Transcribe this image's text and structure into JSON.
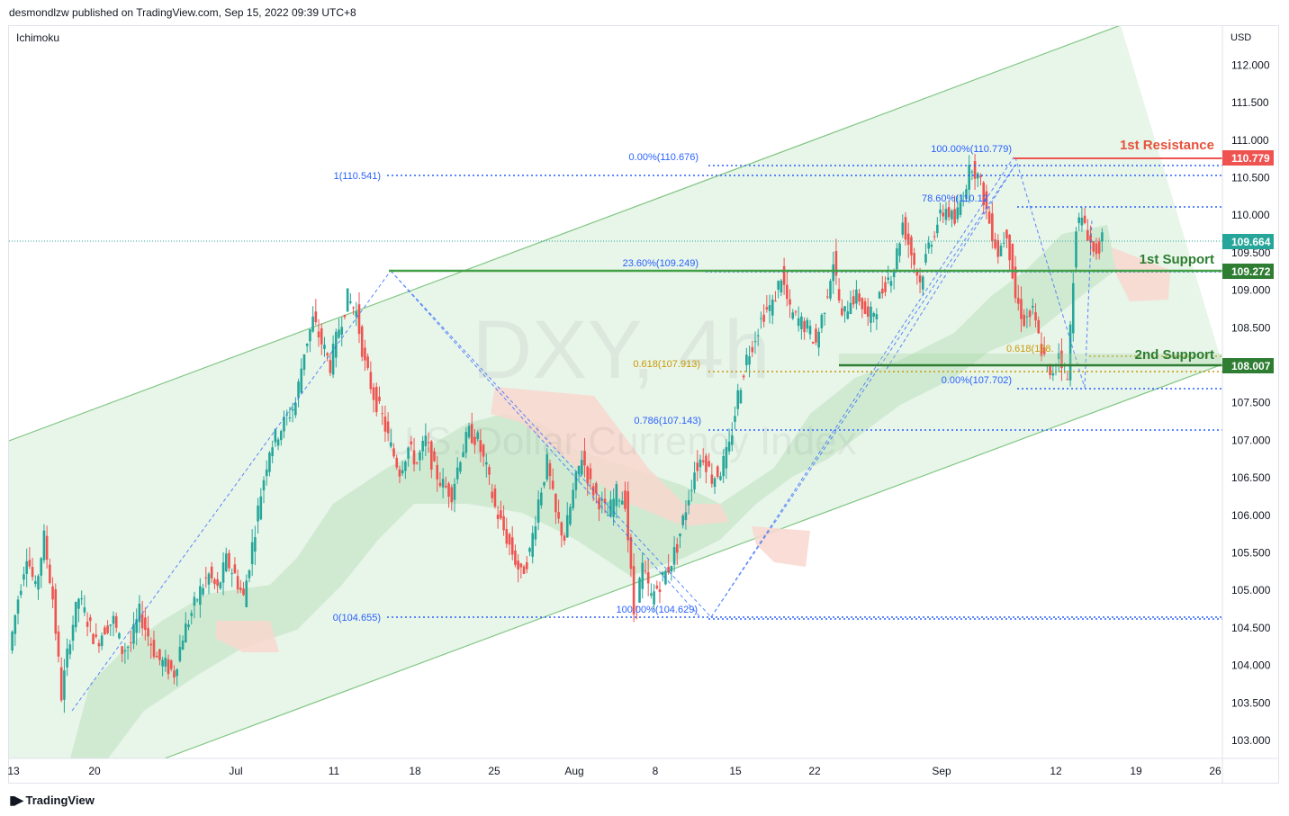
{
  "header": {
    "publisher": "desmondlzw published on TradingView.com, Sep 15, 2022 09:39 UTC+8",
    "indicator": "Ichimoku",
    "currency": "USD"
  },
  "watermark": {
    "symbol": "DXY, 4h",
    "name": "U.S. Dollar Currency Index"
  },
  "footer": {
    "brand": "TradingView"
  },
  "colors": {
    "up": "#26a69a",
    "down": "#ef5350",
    "channel_line": "#81c784",
    "channel_fill": "#e8f5e9",
    "cloud_green": "#c8e6c9",
    "cloud_red": "#f8d7cf",
    "fib_blue": "#2962ff",
    "resistance": "#ef5350",
    "support": "#43a047",
    "fib_gold": "#c99a06"
  },
  "chart_data": {
    "type": "candlestick",
    "ylim": [
      102.9,
      112.4
    ],
    "y_ticks": [
      "112.000",
      "111.500",
      "111.000",
      "110.500",
      "110.000",
      "109.500",
      "109.000",
      "108.500",
      "108.000",
      "107.500",
      "107.000",
      "106.500",
      "106.000",
      "105.500",
      "105.000",
      "104.500",
      "104.000",
      "103.500",
      "103.000"
    ],
    "x_ticks": [
      "13",
      "20",
      "Jul",
      "11",
      "18",
      "25",
      "Aug",
      "8",
      "15",
      "22",
      "Sep",
      "12",
      "19",
      "26"
    ],
    "last_price": {
      "label": "109.664",
      "value": 109.664
    },
    "levels": [
      {
        "name": "1st Resistance",
        "label": "110.779",
        "value": 110.779,
        "kind": "resistance"
      },
      {
        "name": "1st Support",
        "label": "109.272",
        "value": 109.272,
        "kind": "support"
      },
      {
        "name": "2nd Support",
        "label": "108.007",
        "value": 108.007,
        "kind": "support"
      }
    ],
    "fib_labels": [
      {
        "text": "1(110.541)",
        "value": 110.541
      },
      {
        "text": "0.00%(110.676)",
        "value": 110.676
      },
      {
        "text": "100.00%(110.779)",
        "value": 110.779
      },
      {
        "text": "78.60%(110.12",
        "value": 110.12
      },
      {
        "text": "23.60%(109.249)",
        "value": 109.249
      },
      {
        "text": "0.618(107.913)",
        "value": 107.913
      },
      {
        "text": "0.618(108.",
        "value": 108.1
      },
      {
        "text": "0.00%(107.702)",
        "value": 107.702
      },
      {
        "text": "0.786(107.143)",
        "value": 107.143
      },
      {
        "text": "0(104.655)",
        "value": 104.655
      },
      {
        "text": "100.00%(104.629)",
        "value": 104.629
      }
    ],
    "close_path": [
      [
        0,
        104.2
      ],
      [
        1,
        104.9
      ],
      [
        2,
        105.5
      ],
      [
        3,
        105.0
      ],
      [
        4,
        105.7
      ],
      [
        5,
        104.9
      ],
      [
        6,
        103.6
      ],
      [
        7,
        104.4
      ],
      [
        8,
        104.9
      ],
      [
        9,
        104.6
      ],
      [
        10,
        104.3
      ],
      [
        11,
        104.5
      ],
      [
        12,
        104.6
      ],
      [
        13,
        104.2
      ],
      [
        14,
        104.3
      ],
      [
        15,
        104.7
      ],
      [
        16,
        104.4
      ],
      [
        17,
        104.1
      ],
      [
        18,
        104.0
      ],
      [
        19,
        103.9
      ],
      [
        20,
        104.4
      ],
      [
        21,
        104.7
      ],
      [
        22,
        105.0
      ],
      [
        23,
        105.2
      ],
      [
        24,
        105.0
      ],
      [
        25,
        105.4
      ],
      [
        26,
        105.2
      ],
      [
        27,
        104.9
      ],
      [
        28,
        105.6
      ],
      [
        29,
        106.3
      ],
      [
        30,
        106.9
      ],
      [
        31,
        107.1
      ],
      [
        32,
        107.3
      ],
      [
        33,
        107.5
      ],
      [
        34,
        108.2
      ],
      [
        35,
        108.6
      ],
      [
        36,
        108.3
      ],
      [
        37,
        108.0
      ],
      [
        38,
        108.5
      ],
      [
        39,
        108.9
      ],
      [
        40,
        108.7
      ],
      [
        41,
        108.0
      ],
      [
        42,
        107.6
      ],
      [
        43,
        107.3
      ],
      [
        44,
        106.9
      ],
      [
        45,
        106.6
      ],
      [
        46,
        106.9
      ],
      [
        47,
        106.7
      ],
      [
        48,
        107.0
      ],
      [
        49,
        106.6
      ],
      [
        50,
        106.4
      ],
      [
        51,
        106.3
      ],
      [
        52,
        106.8
      ],
      [
        53,
        107.1
      ],
      [
        54,
        107.0
      ],
      [
        55,
        106.6
      ],
      [
        56,
        106.1
      ],
      [
        57,
        105.8
      ],
      [
        58,
        105.5
      ],
      [
        59,
        105.2
      ],
      [
        60,
        105.5
      ],
      [
        61,
        106.2
      ],
      [
        62,
        106.7
      ],
      [
        63,
        106.0
      ],
      [
        64,
        105.7
      ],
      [
        65,
        106.3
      ],
      [
        66,
        106.8
      ],
      [
        67,
        106.4
      ],
      [
        68,
        106.2
      ],
      [
        69,
        106.0
      ],
      [
        70,
        106.3
      ],
      [
        71,
        106.2
      ],
      [
        72,
        104.7
      ],
      [
        73,
        105.3
      ],
      [
        74,
        104.9
      ],
      [
        75,
        105.1
      ],
      [
        76,
        105.3
      ],
      [
        77,
        105.6
      ],
      [
        78,
        106.1
      ],
      [
        79,
        106.6
      ],
      [
        80,
        106.8
      ],
      [
        81,
        106.5
      ],
      [
        82,
        106.6
      ],
      [
        83,
        106.9
      ],
      [
        84,
        107.6
      ],
      [
        85,
        108.1
      ],
      [
        86,
        108.4
      ],
      [
        87,
        108.7
      ],
      [
        88,
        108.8
      ],
      [
        89,
        109.2
      ],
      [
        90,
        108.7
      ],
      [
        91,
        108.6
      ],
      [
        92,
        108.5
      ],
      [
        93,
        108.3
      ],
      [
        94,
        108.8
      ],
      [
        95,
        109.4
      ],
      [
        96,
        108.6
      ],
      [
        97,
        108.9
      ],
      [
        98,
        108.9
      ],
      [
        99,
        108.6
      ],
      [
        100,
        108.8
      ],
      [
        101,
        109.1
      ],
      [
        102,
        109.3
      ],
      [
        103,
        109.9
      ],
      [
        104,
        109.5
      ],
      [
        105,
        109.1
      ],
      [
        106,
        109.6
      ],
      [
        107,
        109.9
      ],
      [
        108,
        110.1
      ],
      [
        109,
        109.9
      ],
      [
        110,
        110.3
      ],
      [
        111,
        110.7
      ],
      [
        112,
        110.4
      ],
      [
        113,
        109.9
      ],
      [
        114,
        109.5
      ],
      [
        115,
        109.8
      ],
      [
        116,
        108.9
      ],
      [
        117,
        108.6
      ],
      [
        118,
        108.7
      ],
      [
        119,
        108.2
      ],
      [
        120,
        107.8
      ],
      [
        121,
        108.2
      ],
      [
        122,
        107.8
      ],
      [
        123,
        109.9
      ],
      [
        124,
        109.9
      ],
      [
        125,
        109.5
      ],
      [
        126,
        109.66
      ]
    ]
  }
}
